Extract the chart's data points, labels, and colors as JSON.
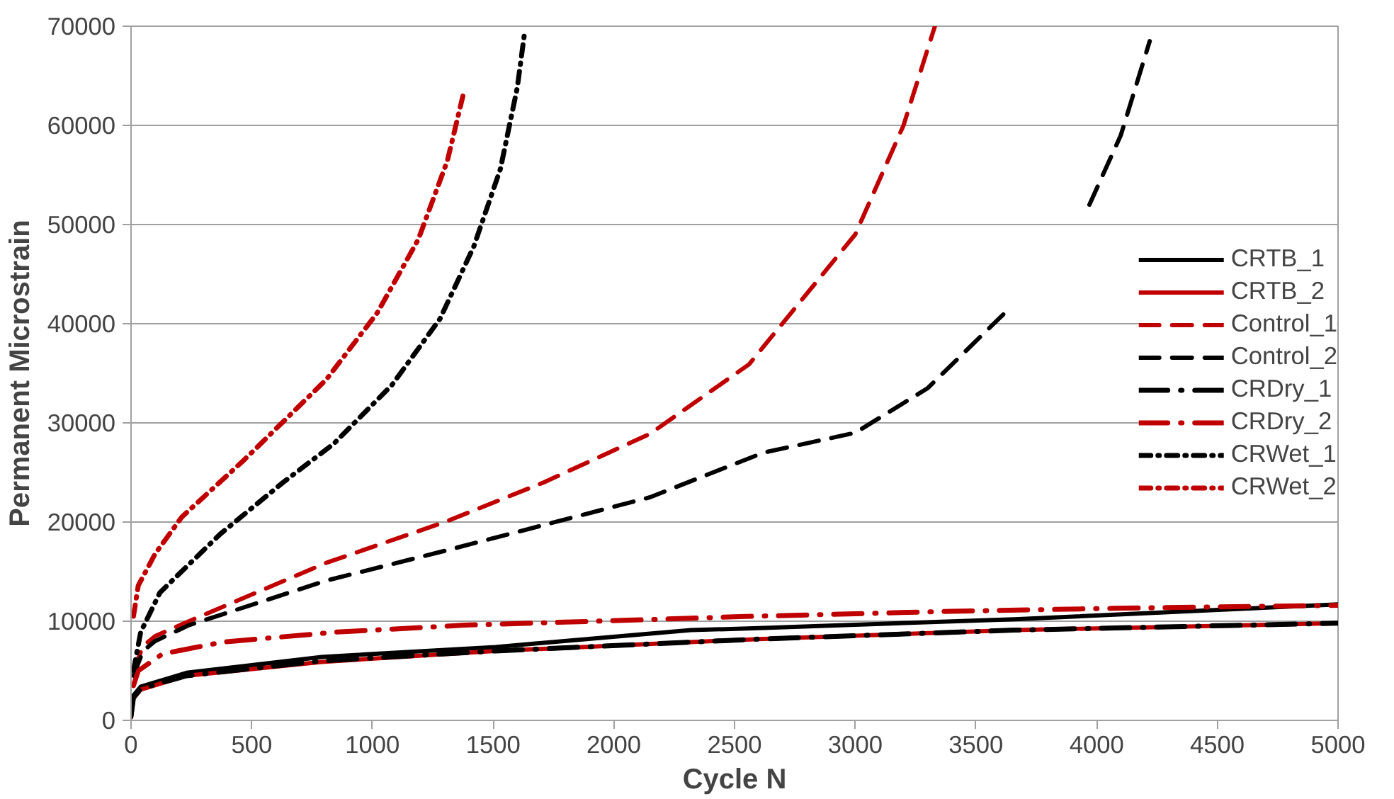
{
  "chart_data": {
    "type": "line",
    "xlabel": "Cycle N",
    "ylabel": "Permanent Microstrain",
    "xlim": [
      0,
      5000
    ],
    "ylim": [
      0,
      70000
    ],
    "xticks": [
      0,
      500,
      1000,
      1500,
      2000,
      2500,
      3000,
      3500,
      4000,
      4500,
      5000
    ],
    "yticks": [
      0,
      10000,
      20000,
      30000,
      40000,
      50000,
      60000,
      70000
    ],
    "grid": "y",
    "legend": "right",
    "marker": "none",
    "series": [
      {
        "name": "CRTB_1",
        "color": "#000000",
        "line_style": "solid",
        "x": [
          0,
          10,
          40,
          230,
          790,
          1510,
          2320,
          2600,
          3660,
          5000
        ],
        "values": [
          500,
          2500,
          3400,
          4800,
          6400,
          7400,
          9100,
          9300,
          10200,
          11700
        ]
      },
      {
        "name": "CRTB_2",
        "color": "#c00000",
        "line_style": "solid",
        "x": [
          0,
          10,
          40,
          230,
          790,
          1510,
          2600,
          3660,
          5000
        ],
        "values": [
          300,
          2200,
          3100,
          4500,
          5900,
          7000,
          8200,
          9100,
          9800
        ]
      },
      {
        "name": "Control_1",
        "color": "#c00000",
        "line_style": "dashed",
        "x": [
          10,
          50,
          100,
          230,
          810,
          1300,
          1710,
          2150,
          2560,
          3000,
          3200,
          3330
        ],
        "values": [
          5000,
          7500,
          8500,
          9900,
          15900,
          20000,
          24000,
          28900,
          35900,
          49000,
          60000,
          70000
        ]
      },
      {
        "name": "Control_2",
        "color": "#000000",
        "line_style": "dashed",
        "x": [
          10,
          50,
          100,
          240,
          810,
          1300,
          1710,
          2150,
          2620,
          3000,
          3300,
          3620,
          3800,
          3970,
          4100,
          4220
        ],
        "values": [
          4500,
          7000,
          8000,
          9600,
          14100,
          17100,
          19700,
          22500,
          27000,
          29000,
          33500,
          41100,
          null,
          52000,
          59000,
          68500
        ]
      },
      {
        "name": "CRDry_1",
        "color": "#000000",
        "line_style": "longdashdot",
        "x": [
          0,
          10,
          40,
          230,
          790,
          1510,
          2600,
          3660,
          5000
        ],
        "values": [
          400,
          2300,
          3200,
          4500,
          6000,
          7000,
          8200,
          9100,
          9800
        ]
      },
      {
        "name": "CRDry_2",
        "color": "#c00000",
        "line_style": "longdashdot",
        "x": [
          10,
          30,
          130,
          380,
          850,
          1380,
          2060,
          2580,
          3400,
          4070,
          5000
        ],
        "values": [
          3500,
          5000,
          6700,
          7900,
          8900,
          9600,
          10100,
          10500,
          11000,
          11300,
          11600
        ]
      },
      {
        "name": "CRWet_1",
        "color": "#000000",
        "line_style": "dashdot",
        "x": [
          10,
          40,
          120,
          370,
          630,
          840,
          1080,
          1280,
          1420,
          1530,
          1600,
          1630
        ],
        "values": [
          5000,
          8900,
          12900,
          18800,
          24000,
          27900,
          33800,
          40500,
          47800,
          55600,
          63800,
          69300
        ]
      },
      {
        "name": "CRWet_2",
        "color": "#c00000",
        "line_style": "dashdot",
        "x": [
          10,
          30,
          100,
          210,
          470,
          810,
          1020,
          1190,
          1310,
          1380
        ],
        "values": [
          10500,
          13600,
          16800,
          20500,
          26300,
          34400,
          41100,
          48500,
          56400,
          63500
        ]
      }
    ]
  }
}
